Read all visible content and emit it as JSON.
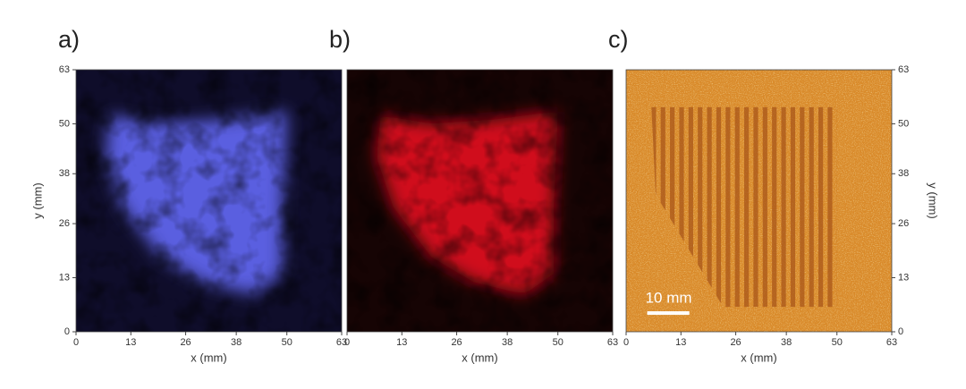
{
  "chart_data": [
    {
      "type": "image",
      "label": "a)",
      "xlabel": "x (mm)",
      "ylabel": "y (mm)",
      "xlim": [
        0,
        63
      ],
      "ylim": [
        0,
        63
      ],
      "xticks": [
        0,
        13,
        26,
        38,
        50,
        63
      ],
      "yticks": [
        0,
        13,
        26,
        38,
        50,
        63
      ],
      "color": "#5a5ee0"
    },
    {
      "type": "image",
      "label": "b)",
      "xlabel": "x (mm)",
      "xlim": [
        0,
        63
      ],
      "ylim": [
        0,
        63
      ],
      "xticks": [
        0,
        13,
        26,
        38,
        50,
        63
      ],
      "color": "#d0101a"
    },
    {
      "type": "image",
      "label": "c)",
      "xlabel": "x (mm)",
      "ylabel": "y (mm)",
      "xlim": [
        0,
        63
      ],
      "ylim": [
        0,
        63
      ],
      "xticks": [
        0,
        13,
        26,
        38,
        50,
        63
      ],
      "yticks": [
        0,
        13,
        26,
        38,
        50,
        63
      ],
      "color": "#d98a2a",
      "scale_bar": {
        "value": 10,
        "label": "10 mm"
      }
    }
  ]
}
